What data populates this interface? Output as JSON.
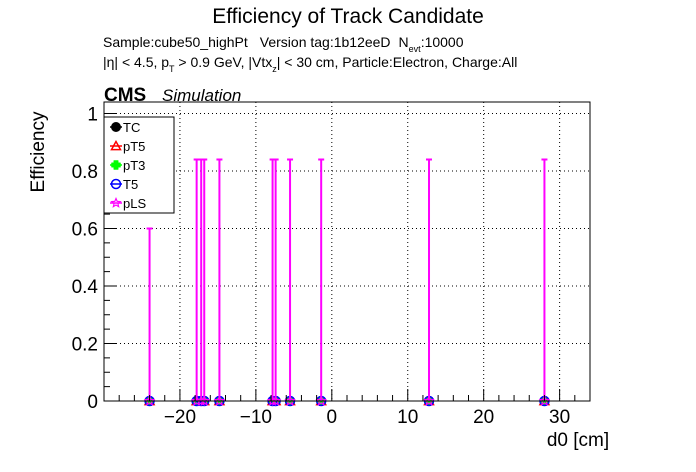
{
  "title": "Efficiency of Track Candidate",
  "info": {
    "sample": "Sample:cube50_highPt",
    "version": "Version tag:1b12eeD",
    "nevt_label": "N",
    "nevt_sub": "evt",
    "nevt_value": ":10000",
    "cuts_eta": "|η| < 4.5, p",
    "cuts_pt_sub": "T",
    "cuts_pt": " > 0.9 GeV, |Vtx",
    "cuts_vtx_sub": "z",
    "cuts_rest": "| < 30 cm, Particle:Electron, Charge:All"
  },
  "cms_label": "CMS",
  "simulation_label": "Simulation",
  "chart_data": {
    "type": "scatter",
    "xlabel": "d0 [cm]",
    "ylabel": "Efficiency",
    "xlim": [
      -30,
      34
    ],
    "ylim": [
      0,
      1.04
    ],
    "xticks": [
      -20,
      -10,
      0,
      10,
      20,
      30
    ],
    "xtick_labels": [
      "−20",
      "−10",
      "0",
      "10",
      "20",
      "30"
    ],
    "yticks": [
      0,
      0.2,
      0.4,
      0.6,
      0.8,
      1
    ],
    "ytick_labels": [
      "0",
      "0.2",
      "0.4",
      "0.6",
      "0.8",
      "1"
    ],
    "grid": true,
    "legend_position": "top-left",
    "series": [
      {
        "name": "TC",
        "color": "#000000",
        "marker": "circle",
        "x": [
          -24,
          -17.8,
          -17.2,
          -16.8,
          -14.8,
          -7.8,
          -7.4,
          -5.5,
          -1.4,
          12.8,
          28
        ],
        "y": [
          0,
          0,
          0,
          0,
          0,
          0,
          0,
          0,
          0,
          0,
          0
        ],
        "yerr_hi": []
      },
      {
        "name": "pT5",
        "color": "#ff0000",
        "marker": "triangle",
        "x": [
          -24,
          -17.8,
          -17.2,
          -16.8,
          -14.8,
          -7.8,
          -7.4,
          -5.5,
          -1.4,
          12.8,
          28
        ],
        "y": [
          0,
          0,
          0,
          0,
          0,
          0,
          0,
          0,
          0,
          0,
          0
        ],
        "yerr_hi": []
      },
      {
        "name": "pT3",
        "color": "#00ff00",
        "marker": "cross",
        "x": [
          -24,
          -17.8,
          -17.2,
          -16.8,
          -14.8,
          -7.8,
          -7.4,
          -5.5,
          -1.4,
          12.8,
          28
        ],
        "y": [
          0,
          0,
          0,
          0,
          0,
          0,
          0,
          0,
          0,
          0,
          0
        ],
        "yerr_hi": []
      },
      {
        "name": "T5",
        "color": "#0000ff",
        "marker": "open-circle",
        "x": [
          -24,
          -17.8,
          -17.2,
          -16.8,
          -14.8,
          -7.8,
          -7.4,
          -5.5,
          -1.4,
          12.8,
          28
        ],
        "y": [
          0,
          0,
          0,
          0,
          0,
          0,
          0,
          0,
          0,
          0,
          0
        ],
        "yerr_hi": []
      },
      {
        "name": "pLS",
        "color": "#ff00ff",
        "marker": "star",
        "x": [
          -24,
          -17.8,
          -17.2,
          -16.8,
          -14.8,
          -7.8,
          -7.4,
          -5.5,
          -1.4,
          12.8,
          28
        ],
        "y": [
          0,
          0,
          0,
          0,
          0,
          0,
          0,
          0,
          0,
          0,
          0
        ],
        "yerr_hi": [
          0.6,
          0.84,
          0.84,
          0.84,
          0.84,
          0.84,
          0.84,
          0.84,
          0.84,
          0.84,
          0.84
        ]
      }
    ]
  }
}
